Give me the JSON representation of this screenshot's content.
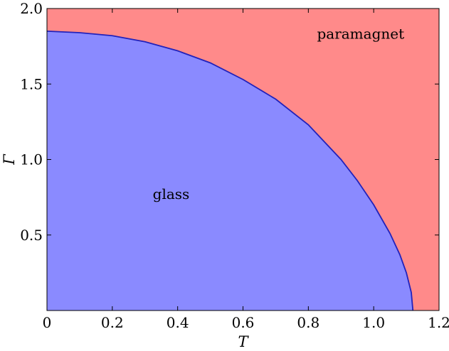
{
  "chart_data": {
    "type": "area",
    "xlabel": "T",
    "ylabel": "Γ",
    "xlim": [
      0,
      1.2
    ],
    "ylim": [
      0,
      2.0
    ],
    "x_ticks": [
      {
        "value": 0,
        "label": "0"
      },
      {
        "value": 0.2,
        "label": "0.2"
      },
      {
        "value": 0.4,
        "label": "0.4"
      },
      {
        "value": 0.6,
        "label": "0.6"
      },
      {
        "value": 0.8,
        "label": "0.8"
      },
      {
        "value": 1.0,
        "label": "1.0"
      },
      {
        "value": 1.2,
        "label": "1.2"
      }
    ],
    "y_ticks": [
      {
        "value": 0.5,
        "label": "0.5"
      },
      {
        "value": 1.0,
        "label": "1.0"
      },
      {
        "value": 1.5,
        "label": "1.5"
      },
      {
        "value": 2.0,
        "label": "2.0"
      }
    ],
    "regions": [
      {
        "label": "glass",
        "color": "#8a8aff",
        "anchor": {
          "x": 0.38,
          "y": 0.74
        }
      },
      {
        "label": "paramagnet",
        "color": "#ff8a8a",
        "anchor": {
          "x": 0.96,
          "y": 1.8
        }
      }
    ],
    "boundary": {
      "color": "#2222bb",
      "x": [
        0,
        0.1,
        0.2,
        0.3,
        0.4,
        0.5,
        0.6,
        0.7,
        0.8,
        0.9,
        0.95,
        1.0,
        1.05,
        1.08,
        1.1,
        1.115,
        1.12
      ],
      "y": [
        1.85,
        1.84,
        1.82,
        1.78,
        1.72,
        1.64,
        1.53,
        1.4,
        1.23,
        1.0,
        0.86,
        0.7,
        0.51,
        0.37,
        0.25,
        0.12,
        0.0
      ]
    }
  }
}
